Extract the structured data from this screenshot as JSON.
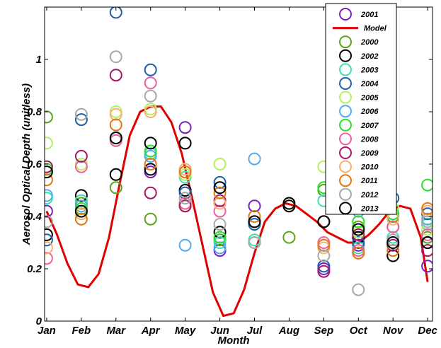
{
  "chart_data": {
    "type": "scatter",
    "title": "",
    "xlabel": "Month",
    "ylabel": "Aerosol Optical Depth (unitless)",
    "ylim": [
      0,
      1.2
    ],
    "yticks": [
      0,
      0.2,
      0.4,
      0.6,
      0.8,
      1
    ],
    "ytick_labels": [
      "0",
      "0.2",
      "0.4",
      "0.6",
      "0.8",
      "1"
    ],
    "categories": [
      "Jan",
      "Feb",
      "Mar",
      "Apr",
      "May",
      "Jun",
      "Jul",
      "Aug",
      "Sep",
      "Oct",
      "Nov",
      "Dec"
    ],
    "grid": false,
    "legend_position": "top-right",
    "series": [
      {
        "name": "2001",
        "kind": "marker",
        "color": "#7a1fc4",
        "points": [
          [
            1,
            0.42
          ],
          [
            4,
            0.57
          ],
          [
            5,
            0.74
          ],
          [
            6,
            0.27
          ],
          [
            7,
            0.44
          ],
          [
            9,
            0.2
          ],
          [
            10,
            0.29
          ],
          [
            11,
            0.36
          ],
          [
            12,
            0.21
          ]
        ]
      },
      {
        "name": "Model",
        "kind": "line",
        "color": "#e00000",
        "points": [
          [
            1,
            0.42
          ],
          [
            1.3,
            0.33
          ],
          [
            1.6,
            0.22
          ],
          [
            1.9,
            0.14
          ],
          [
            2.2,
            0.13
          ],
          [
            2.5,
            0.18
          ],
          [
            2.8,
            0.32
          ],
          [
            3.1,
            0.52
          ],
          [
            3.4,
            0.71
          ],
          [
            3.7,
            0.8
          ],
          [
            4.0,
            0.82
          ],
          [
            4.3,
            0.82
          ],
          [
            4.6,
            0.76
          ],
          [
            4.9,
            0.64
          ],
          [
            5.2,
            0.47
          ],
          [
            5.5,
            0.29
          ],
          [
            5.8,
            0.11
          ],
          [
            6.1,
            0.02
          ],
          [
            6.4,
            0.03
          ],
          [
            6.7,
            0.12
          ],
          [
            7.0,
            0.26
          ],
          [
            7.3,
            0.38
          ],
          [
            7.6,
            0.43
          ],
          [
            7.9,
            0.45
          ],
          [
            8.2,
            0.44
          ],
          [
            8.5,
            0.41
          ],
          [
            8.8,
            0.38
          ],
          [
            9.1,
            0.34
          ],
          [
            9.4,
            0.32
          ],
          [
            9.7,
            0.3
          ],
          [
            10.0,
            0.3
          ],
          [
            10.3,
            0.33
          ],
          [
            10.6,
            0.37
          ],
          [
            10.9,
            0.42
          ],
          [
            11.2,
            0.44
          ],
          [
            11.5,
            0.43
          ],
          [
            11.8,
            0.32
          ],
          [
            12.0,
            0.15
          ]
        ]
      },
      {
        "name": "2000",
        "kind": "marker",
        "color": "#5aa51c",
        "points": [
          [
            1,
            0.78
          ],
          [
            2,
            0.45
          ],
          [
            3,
            0.51
          ],
          [
            4,
            0.39
          ],
          [
            5,
            0.45
          ],
          [
            6,
            0.31
          ],
          [
            7,
            0.3
          ],
          [
            8,
            0.32
          ],
          [
            9,
            0.5
          ],
          [
            10,
            0.36
          ],
          [
            11,
            0.4
          ],
          [
            12,
            0.32
          ]
        ]
      },
      {
        "name": "2002",
        "kind": "marker",
        "color": "#000000",
        "points": [
          [
            1,
            0.33
          ],
          [
            2,
            0.48
          ],
          [
            3,
            0.56
          ],
          [
            4,
            0.58
          ],
          [
            5,
            0.5
          ],
          [
            6,
            0.34
          ],
          [
            7,
            0.38
          ],
          [
            8,
            0.44
          ],
          [
            9,
            0.38
          ],
          [
            10,
            0.32
          ],
          [
            11,
            0.25
          ],
          [
            12,
            0.3
          ]
        ]
      },
      {
        "name": "2003",
        "kind": "marker",
        "color": "#3de0b0",
        "points": [
          [
            1,
            0.47
          ],
          [
            2,
            0.46
          ],
          [
            3,
            0.7
          ],
          [
            4,
            0.64
          ],
          [
            5,
            0.55
          ],
          [
            6,
            0.3
          ],
          [
            7,
            0.31
          ],
          [
            9,
            0.46
          ],
          [
            10,
            0.28
          ],
          [
            11,
            0.32
          ],
          [
            12,
            0.37
          ]
        ]
      },
      {
        "name": "2004",
        "kind": "marker",
        "color": "#1f5fa8",
        "points": [
          [
            1,
            0.31
          ],
          [
            2,
            0.77
          ],
          [
            3,
            1.18
          ],
          [
            4,
            0.96
          ],
          [
            5,
            0.49
          ],
          [
            6,
            0.53
          ],
          [
            7,
            0.37
          ],
          [
            9,
            0.21
          ],
          [
            10,
            0.3
          ],
          [
            11,
            0.47
          ],
          [
            12,
            0.41
          ]
        ]
      },
      {
        "name": "2005",
        "kind": "marker",
        "color": "#b4f060",
        "points": [
          [
            1,
            0.68
          ],
          [
            2,
            0.6
          ],
          [
            3,
            0.8
          ],
          [
            4,
            0.81
          ],
          [
            5,
            0.56
          ],
          [
            6,
            0.6
          ],
          [
            9,
            0.59
          ],
          [
            10,
            0.34
          ],
          [
            11,
            0.43
          ],
          [
            12,
            0.35
          ]
        ]
      },
      {
        "name": "2006",
        "kind": "marker",
        "color": "#58a8f0",
        "points": [
          [
            1,
            0.48
          ],
          [
            2,
            0.44
          ],
          [
            3,
            0.7
          ],
          [
            4,
            0.63
          ],
          [
            5,
            0.29
          ],
          [
            6,
            0.28
          ],
          [
            7,
            0.62
          ],
          [
            9,
            0.29
          ],
          [
            10,
            0.42
          ],
          [
            11,
            0.3
          ],
          [
            12,
            0.39
          ]
        ]
      },
      {
        "name": "2007",
        "kind": "marker",
        "color": "#28e028",
        "points": [
          [
            1,
            0.58
          ],
          [
            2,
            0.43
          ],
          [
            3,
            0.69
          ],
          [
            4,
            0.65
          ],
          [
            5,
            0.44
          ],
          [
            6,
            0.32
          ],
          [
            9,
            0.51
          ],
          [
            10,
            0.38
          ],
          [
            11,
            0.41
          ],
          [
            12,
            0.52
          ]
        ]
      },
      {
        "name": "2008",
        "kind": "marker",
        "color": "#f060a0",
        "points": [
          [
            1,
            0.24
          ],
          [
            2,
            0.59
          ],
          [
            3,
            0.69
          ],
          [
            4,
            0.91
          ],
          [
            5,
            0.45
          ],
          [
            6,
            0.42
          ],
          [
            9,
            0.3
          ],
          [
            10,
            0.27
          ],
          [
            11,
            0.36
          ],
          [
            12,
            0.33
          ]
        ]
      },
      {
        "name": "2009",
        "kind": "marker",
        "color": "#a81868",
        "points": [
          [
            1,
            0.59
          ],
          [
            2,
            0.63
          ],
          [
            3,
            0.94
          ],
          [
            4,
            0.49
          ],
          [
            5,
            0.44
          ],
          [
            6,
            0.46
          ],
          [
            9,
            0.19
          ],
          [
            10,
            0.33
          ],
          [
            11,
            0.29
          ],
          [
            12,
            0.27
          ]
        ]
      },
      {
        "name": "2010",
        "kind": "marker",
        "color": "#f8b070",
        "points": [
          [
            1,
            0.28
          ],
          [
            2,
            0.41
          ],
          [
            3,
            0.79
          ],
          [
            4,
            0.8
          ],
          [
            5,
            0.58
          ],
          [
            6,
            0.45
          ],
          [
            7,
            0.38
          ],
          [
            9,
            0.28
          ],
          [
            10,
            0.26
          ],
          [
            11,
            0.39
          ],
          [
            12,
            0.42
          ]
        ]
      },
      {
        "name": "2011",
        "kind": "marker",
        "color": "#e07810",
        "points": [
          [
            1,
            0.54
          ],
          [
            2,
            0.39
          ],
          [
            3,
            0.75
          ],
          [
            4,
            0.6
          ],
          [
            5,
            0.57
          ],
          [
            6,
            0.49
          ],
          [
            7,
            0.4
          ],
          [
            8,
            0.45
          ],
          [
            9,
            0.29
          ],
          [
            10,
            0.26
          ],
          [
            11,
            0.27
          ],
          [
            12,
            0.43
          ]
        ]
      },
      {
        "name": "2012",
        "kind": "marker",
        "color": "#a8a8a8",
        "points": [
          [
            1,
            0.38
          ],
          [
            2,
            0.79
          ],
          [
            3,
            1.01
          ],
          [
            4,
            0.86
          ],
          [
            5,
            0.47
          ],
          [
            6,
            0.37
          ],
          [
            7,
            0.3
          ],
          [
            9,
            0.25
          ],
          [
            10,
            0.12
          ],
          [
            11,
            0.31
          ],
          [
            12,
            0.38
          ]
        ]
      },
      {
        "name": "2013",
        "kind": "marker",
        "color": "#000000",
        "points": [
          [
            1,
            0.57
          ],
          [
            2,
            0.42
          ],
          [
            3,
            0.7
          ],
          [
            4,
            0.68
          ],
          [
            5,
            0.68
          ],
          [
            6,
            0.51
          ],
          [
            7,
            0.38
          ],
          [
            8,
            0.45
          ],
          [
            9,
            0.38
          ],
          [
            10,
            0.35
          ],
          [
            11,
            0.3
          ],
          [
            12,
            0.3
          ]
        ]
      }
    ]
  }
}
